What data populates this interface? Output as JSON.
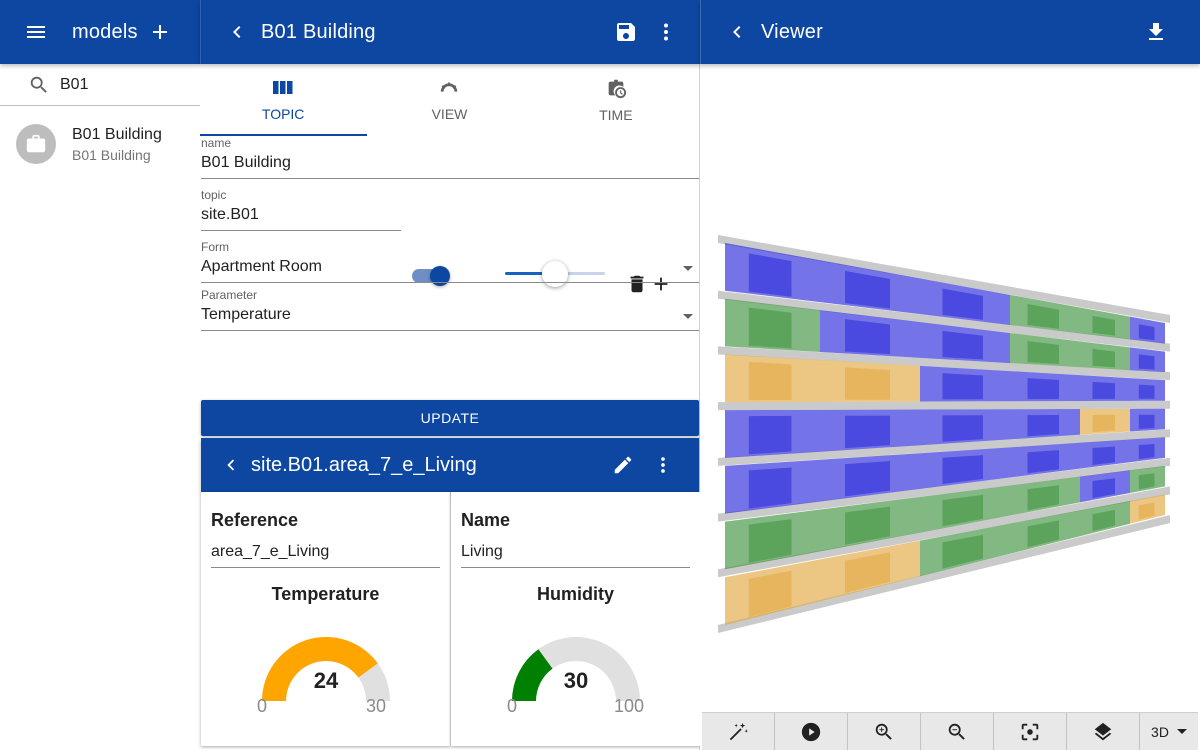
{
  "left_panel": {
    "title": "models",
    "search": {
      "value": "B01"
    },
    "items": [
      {
        "title": "B01 Building",
        "subtitle": "B01 Building"
      }
    ]
  },
  "editor": {
    "title": "B01 Building",
    "tabs": [
      {
        "label": "TOPIC",
        "active": true
      },
      {
        "label": "VIEW",
        "active": false
      },
      {
        "label": "TIME",
        "active": false
      }
    ],
    "fields": {
      "name": {
        "label": "name",
        "value": "B01 Building"
      },
      "topic": {
        "label": "topic",
        "value": "site.B01"
      },
      "form": {
        "label": "Form",
        "value": "Apartment Room"
      },
      "parameter": {
        "label": "Parameter",
        "value": "Temperature"
      }
    },
    "toggle_on": true,
    "slider_value": 0.5,
    "update_label": "UPDATE"
  },
  "detail": {
    "title": "site.B01.area_7_e_Living",
    "reference": {
      "label": "Reference",
      "value": "area_7_e_Living"
    },
    "name": {
      "label": "Name",
      "value": "Living"
    },
    "gauges": [
      {
        "title": "Temperature",
        "value": "24",
        "min": "0",
        "max": "30",
        "fraction": 0.8,
        "color": "#ffa500"
      },
      {
        "title": "Humidity",
        "value": "30",
        "min": "0",
        "max": "100",
        "fraction": 0.3,
        "color": "#008000"
      }
    ]
  },
  "viewer": {
    "title": "Viewer",
    "toolbar": [
      {
        "icon": "magic-wand-icon"
      },
      {
        "icon": "play-icon"
      },
      {
        "icon": "zoom-in-icon"
      },
      {
        "icon": "zoom-out-icon"
      },
      {
        "icon": "center-focus-icon"
      },
      {
        "icon": "layers-icon"
      }
    ],
    "mode": "3D"
  },
  "colors": {
    "primary": "#0d47a1",
    "room_blue": "#1818d8",
    "room_green": "#2e8b2e",
    "room_orange": "#e0a030"
  }
}
